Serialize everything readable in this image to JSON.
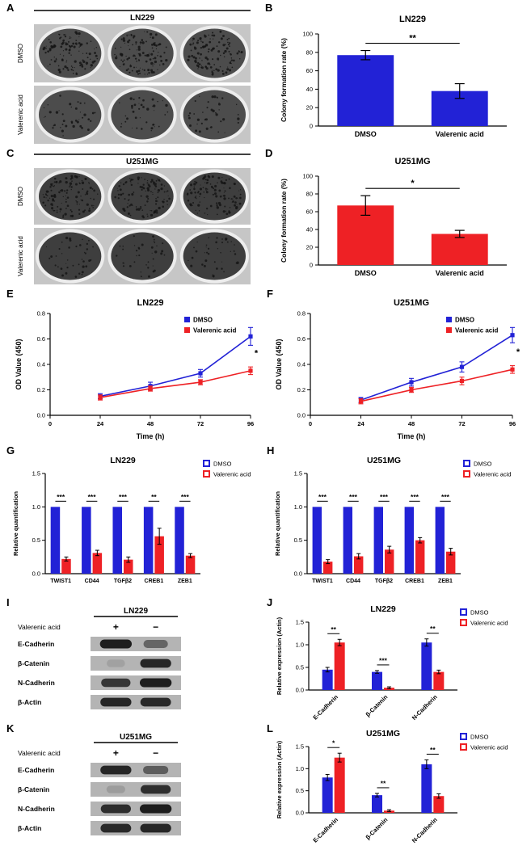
{
  "colors": {
    "dmso_blue": "#2222d6",
    "valerenic_red": "#ee2125",
    "axis_black": "#000000",
    "plate_gray": "#c6c6c6"
  },
  "panels": {
    "A": {
      "letter": "A",
      "title": "LN229",
      "row_labels": [
        "DMSO",
        "Valerenic acid"
      ],
      "well_shade": "#4c4c4c"
    },
    "B": {
      "letter": "B"
    },
    "C": {
      "letter": "C",
      "title": "U251MG",
      "row_labels": [
        "DMSO",
        "Valerenic acid"
      ],
      "well_shade": "#3e3e3e"
    },
    "D": {
      "letter": "D"
    },
    "E": {
      "letter": "E"
    },
    "F": {
      "letter": "F"
    },
    "G": {
      "letter": "G"
    },
    "H": {
      "letter": "H"
    },
    "I": {
      "letter": "I",
      "title": "LN229",
      "treatment_label": "Valerenic acid",
      "lane_labels": [
        "+",
        "−"
      ],
      "proteins": [
        "E-Cadherin",
        "β-Catenin",
        "N-Cadherin",
        "β-Actin"
      ],
      "band_intensities": [
        [
          0.95,
          0.5
        ],
        [
          0.12,
          0.9
        ],
        [
          0.8,
          0.95
        ],
        [
          0.9,
          0.88
        ]
      ]
    },
    "J": {
      "letter": "J"
    },
    "K": {
      "letter": "K",
      "title": "U251MG",
      "treatment_label": "Valerenic acid",
      "lane_labels": [
        "+",
        "−"
      ],
      "proteins": [
        "E-Cadherin",
        "β-Catenin",
        "N-Cadherin",
        "β-Actin"
      ],
      "band_intensities": [
        [
          0.9,
          0.55
        ],
        [
          0.15,
          0.85
        ],
        [
          0.85,
          0.95
        ],
        [
          0.88,
          0.9
        ]
      ]
    },
    "L": {
      "letter": "L"
    }
  },
  "chart_data": [
    {
      "id": "B",
      "type": "bar",
      "title": "LN229",
      "ylabel": "Colony formation rate (%)",
      "categories": [
        "DMSO",
        "Valerenic acid"
      ],
      "values": [
        77,
        38
      ],
      "errors": [
        5,
        8
      ],
      "bar_color": "#2222d6",
      "ylim": [
        0,
        100
      ],
      "yticks": [
        "0",
        "20",
        "40",
        "60",
        "80",
        "100"
      ],
      "significance": [
        {
          "pair": [
            0,
            1
          ],
          "label": "**"
        }
      ]
    },
    {
      "id": "D",
      "type": "bar",
      "title": "U251MG",
      "ylabel": "Colony formation rate (%)",
      "categories": [
        "DMSO",
        "Valerenic acid"
      ],
      "values": [
        67,
        35
      ],
      "errors": [
        11,
        4
      ],
      "bar_color": "#ee2125",
      "ylim": [
        0,
        100
      ],
      "yticks": [
        "0",
        "20",
        "40",
        "60",
        "80",
        "100"
      ],
      "significance": [
        {
          "pair": [
            0,
            1
          ],
          "label": "*"
        }
      ]
    },
    {
      "id": "E",
      "type": "line",
      "title": "LN229",
      "xlabel": "Time (h)",
      "ylabel": "OD Value (450)",
      "xlim": [
        0,
        96
      ],
      "xticks": [
        "0",
        "24",
        "48",
        "72",
        "96"
      ],
      "ylim": [
        0,
        0.8
      ],
      "yticks": [
        "0.0",
        "0.2",
        "0.4",
        "0.6",
        "0.8"
      ],
      "x": [
        24,
        48,
        72,
        96
      ],
      "series": [
        {
          "name": "DMSO",
          "color": "#2222d6",
          "values": [
            0.15,
            0.23,
            0.33,
            0.62
          ],
          "errors": [
            0.02,
            0.03,
            0.03,
            0.07
          ]
        },
        {
          "name": "Valerenic acid",
          "color": "#ee2125",
          "values": [
            0.14,
            0.21,
            0.26,
            0.35
          ],
          "errors": [
            0.02,
            0.02,
            0.02,
            0.03
          ]
        }
      ],
      "annotation": "*"
    },
    {
      "id": "F",
      "type": "line",
      "title": "U251MG",
      "xlabel": "Time (h)",
      "ylabel": "OD Value (450)",
      "xlim": [
        0,
        96
      ],
      "xticks": [
        "0",
        "24",
        "48",
        "72",
        "96"
      ],
      "ylim": [
        0,
        0.8
      ],
      "yticks": [
        "0.0",
        "0.2",
        "0.4",
        "0.6",
        "0.8"
      ],
      "x": [
        24,
        48,
        72,
        96
      ],
      "series": [
        {
          "name": "DMSO",
          "color": "#2222d6",
          "values": [
            0.12,
            0.26,
            0.38,
            0.63
          ],
          "errors": [
            0.02,
            0.03,
            0.04,
            0.06
          ]
        },
        {
          "name": "Valerenic acid",
          "color": "#ee2125",
          "values": [
            0.11,
            0.2,
            0.27,
            0.36
          ],
          "errors": [
            0.02,
            0.02,
            0.03,
            0.03
          ]
        }
      ],
      "annotation": "*"
    },
    {
      "id": "G",
      "type": "grouped_bar",
      "title": "LN229",
      "ylabel": "Relative quantification",
      "categories": [
        "TWIST1",
        "CD44",
        "TGFβ2",
        "CREB1",
        "ZEB1"
      ],
      "ylim": [
        0,
        1.5
      ],
      "yticks": [
        "0.0",
        "0.5",
        "1.0",
        "1.5"
      ],
      "series": [
        {
          "name": "DMSO",
          "color": "#2222d6",
          "values": [
            1,
            1,
            1,
            1,
            1
          ],
          "errors": [
            0,
            0,
            0,
            0,
            0
          ]
        },
        {
          "name": "Valerenic acid",
          "color": "#ee2125",
          "values": [
            0.22,
            0.31,
            0.21,
            0.56,
            0.27
          ],
          "errors": [
            0.03,
            0.04,
            0.04,
            0.12,
            0.03
          ]
        }
      ],
      "significance": [
        "***",
        "***",
        "***",
        "**",
        "***"
      ],
      "rotate_xticks": false
    },
    {
      "id": "H",
      "type": "grouped_bar",
      "title": "U251MG",
      "ylabel": "Relative quantification",
      "categories": [
        "TWIST1",
        "CD44",
        "TGFβ2",
        "CREB1",
        "ZEB1"
      ],
      "ylim": [
        0,
        1.5
      ],
      "yticks": [
        "0.0",
        "0.5",
        "1.0",
        "1.5"
      ],
      "series": [
        {
          "name": "DMSO",
          "color": "#2222d6",
          "values": [
            1,
            1,
            1,
            1,
            1
          ],
          "errors": [
            0,
            0,
            0,
            0,
            0
          ]
        },
        {
          "name": "Valerenic acid",
          "color": "#ee2125",
          "values": [
            0.18,
            0.26,
            0.36,
            0.5,
            0.33
          ],
          "errors": [
            0.03,
            0.04,
            0.05,
            0.04,
            0.05
          ]
        }
      ],
      "significance": [
        "***",
        "***",
        "***",
        "***",
        "***"
      ],
      "rotate_xticks": false
    },
    {
      "id": "J",
      "type": "grouped_bar",
      "title": "LN229",
      "ylabel": "Relative expression (Actin)",
      "categories": [
        "E-Cadherin",
        "β-Catenin",
        "N-Cadherin"
      ],
      "ylim": [
        0,
        1.5
      ],
      "yticks": [
        "0.0",
        "0.5",
        "1.0",
        "1.5"
      ],
      "series": [
        {
          "name": "DMSO",
          "color": "#2222d6",
          "values": [
            0.45,
            0.4,
            1.05
          ],
          "errors": [
            0.05,
            0.03,
            0.08
          ]
        },
        {
          "name": "Valerenic acid",
          "color": "#ee2125",
          "values": [
            1.05,
            0.05,
            0.4
          ],
          "errors": [
            0.07,
            0.02,
            0.04
          ]
        }
      ],
      "significance": [
        "**",
        "***",
        "**"
      ],
      "rotate_xticks": true
    },
    {
      "id": "L",
      "type": "grouped_bar",
      "title": "U251MG",
      "ylabel": "Relative expression (Actin)",
      "categories": [
        "E-Cadherin",
        "β-Catenin",
        "N-Cadherin"
      ],
      "ylim": [
        0,
        1.5
      ],
      "yticks": [
        "0.0",
        "0.5",
        "1.0",
        "1.5"
      ],
      "series": [
        {
          "name": "DMSO",
          "color": "#2222d6",
          "values": [
            0.8,
            0.4,
            1.1
          ],
          "errors": [
            0.07,
            0.04,
            0.1
          ]
        },
        {
          "name": "Valerenic acid",
          "color": "#ee2125",
          "values": [
            1.25,
            0.05,
            0.38
          ],
          "errors": [
            0.1,
            0.02,
            0.05
          ]
        }
      ],
      "significance": [
        "*",
        "**",
        "**"
      ],
      "rotate_xticks": true
    }
  ]
}
